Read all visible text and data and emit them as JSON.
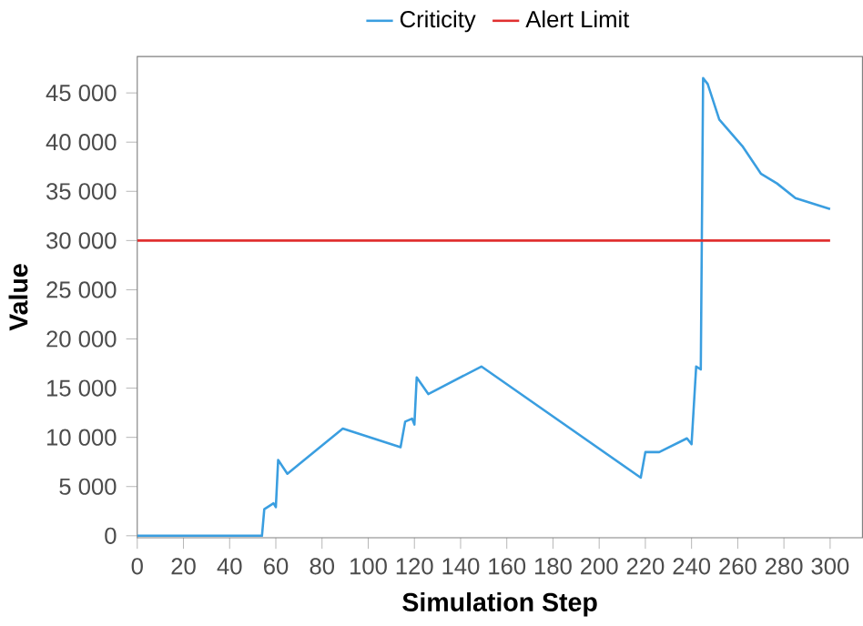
{
  "chart_data": {
    "type": "line",
    "xlabel": "Simulation Step",
    "ylabel": "Value",
    "legend": "top",
    "grid": false,
    "xlim": [
      0,
      314
    ],
    "ylim": [
      -200,
      48700
    ],
    "xticks": [
      0,
      20,
      40,
      60,
      80,
      100,
      120,
      140,
      160,
      180,
      200,
      220,
      240,
      260,
      280,
      300
    ],
    "yticks": [
      0,
      {
        "value": 5000,
        "label": "5 000"
      },
      {
        "value": 10000,
        "label": "10 000"
      },
      {
        "value": 15000,
        "label": "15 000"
      },
      {
        "value": 20000,
        "label": "20 000"
      },
      {
        "value": 25000,
        "label": "25 000"
      },
      {
        "value": 30000,
        "label": "30 000"
      },
      {
        "value": 35000,
        "label": "35 000"
      },
      {
        "value": 40000,
        "label": "40 000"
      },
      {
        "value": 45000,
        "label": "45 000"
      }
    ],
    "series": [
      {
        "name": "Criticity",
        "color": "#3a9ee0",
        "x": [
          0,
          54,
          55,
          59,
          60,
          61,
          65,
          89,
          114,
          116,
          119,
          120,
          121,
          126,
          149,
          218,
          220,
          226,
          238,
          240,
          242,
          244,
          245,
          247,
          252,
          262,
          270,
          277,
          285,
          300
        ],
        "values": [
          0,
          0,
          2700,
          3300,
          2900,
          7700,
          6300,
          10900,
          9000,
          11600,
          11900,
          11300,
          16100,
          14400,
          17200,
          5900,
          8500,
          8500,
          9900,
          9300,
          17200,
          16900,
          46500,
          45900,
          42300,
          39600,
          36800,
          35800,
          34300,
          33200
        ]
      },
      {
        "name": "Alert Limit",
        "color": "#e03030",
        "x": [
          0,
          300
        ],
        "values": [
          30000,
          30000
        ]
      }
    ]
  }
}
